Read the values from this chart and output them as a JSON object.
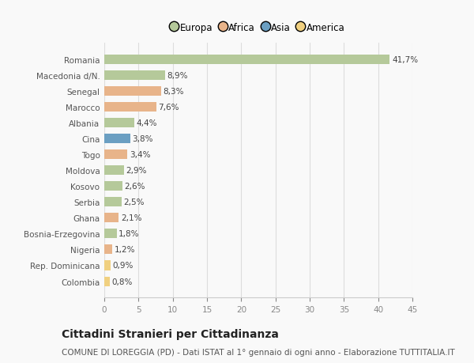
{
  "categories": [
    "Colombia",
    "Rep. Dominicana",
    "Nigeria",
    "Bosnia-Erzegovina",
    "Ghana",
    "Serbia",
    "Kosovo",
    "Moldova",
    "Togo",
    "Cina",
    "Albania",
    "Marocco",
    "Senegal",
    "Macedonia d/N.",
    "Romania"
  ],
  "values": [
    0.8,
    0.9,
    1.2,
    1.8,
    2.1,
    2.5,
    2.6,
    2.9,
    3.4,
    3.8,
    4.4,
    7.6,
    8.3,
    8.9,
    41.7
  ],
  "continents": [
    "America",
    "America",
    "Africa",
    "Europa",
    "Africa",
    "Europa",
    "Europa",
    "Europa",
    "Africa",
    "Asia",
    "Europa",
    "Africa",
    "Africa",
    "Europa",
    "Europa"
  ],
  "labels": [
    "0,8%",
    "0,9%",
    "1,2%",
    "1,8%",
    "2,1%",
    "2,5%",
    "2,6%",
    "2,9%",
    "3,4%",
    "3,8%",
    "4,4%",
    "7,6%",
    "8,3%",
    "8,9%",
    "41,7%"
  ],
  "continent_colors": {
    "Europa": "#b5c99a",
    "Africa": "#e8b48a",
    "Asia": "#6b9fc2",
    "America": "#f0d080"
  },
  "legend_order": [
    "Europa",
    "Africa",
    "Asia",
    "America"
  ],
  "legend_colors": [
    "#b5c99a",
    "#e8b48a",
    "#6b9fc2",
    "#f0d080"
  ],
  "xlim": [
    0,
    45
  ],
  "xticks": [
    0,
    5,
    10,
    15,
    20,
    25,
    30,
    35,
    40,
    45
  ],
  "title": "Cittadini Stranieri per Cittadinanza",
  "subtitle": "COMUNE DI LOREGGIA (PD) - Dati ISTAT al 1° gennaio di ogni anno - Elaborazione TUTTITALIA.IT",
  "background_color": "#f9f9f9",
  "bar_height": 0.6,
  "label_fontsize": 7.5,
  "tick_fontsize": 7.5,
  "title_fontsize": 10,
  "subtitle_fontsize": 7.5
}
